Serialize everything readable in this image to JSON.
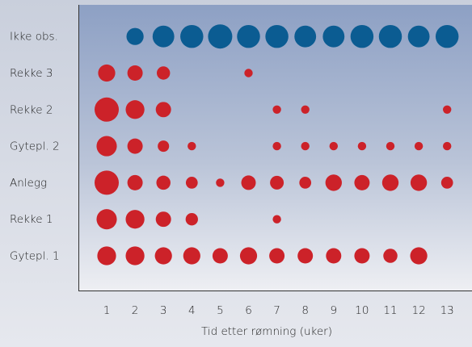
{
  "chart_data": {
    "type": "scatter",
    "title": "",
    "xlabel": "Tid etter rømning (uker)",
    "ylabel": "",
    "x": [
      1,
      2,
      3,
      4,
      5,
      6,
      7,
      8,
      9,
      10,
      11,
      12,
      13
    ],
    "x_tick_labels": [
      "1",
      "2",
      "3",
      "4",
      "5",
      "6",
      "7",
      "8",
      "9",
      "10",
      "11",
      "12",
      "13"
    ],
    "categories": [
      "Gytepl. 1",
      "Rekke 1",
      "Anlegg",
      "Gytepl. 2",
      "Rekke 2",
      "Rekke 3",
      "Ikke obs."
    ],
    "size_scale_max": 5,
    "colors": {
      "observed": "#cc2229",
      "not_observed": "#0b5c92"
    },
    "series": [
      {
        "category": "Gytepl. 1",
        "color": "#cc2229",
        "values": [
          3,
          3,
          2.5,
          2.5,
          2,
          2.5,
          2,
          2,
          2,
          2,
          1.7,
          2.5,
          null
        ]
      },
      {
        "category": "Rekke 1",
        "color": "#cc2229",
        "values": [
          3.5,
          3,
          2,
          1.3,
          null,
          null,
          0.6,
          null,
          null,
          null,
          null,
          null,
          null
        ]
      },
      {
        "category": "Anlegg",
        "color": "#cc2229",
        "values": [
          5,
          2,
          1.7,
          1.2,
          0.6,
          1.8,
          1.6,
          1.2,
          2.3,
          2,
          2.3,
          2.3,
          1.2
        ]
      },
      {
        "category": "Gytepl. 2",
        "color": "#cc2229",
        "values": [
          3.5,
          2,
          1.1,
          0.6,
          null,
          null,
          0.6,
          0.6,
          0.6,
          0.6,
          0.6,
          0.6,
          0.6
        ]
      },
      {
        "category": "Rekke 2",
        "color": "#cc2229",
        "values": [
          5,
          3,
          2,
          null,
          null,
          null,
          0.6,
          0.6,
          null,
          null,
          null,
          null,
          0.6
        ]
      },
      {
        "category": "Rekke 3",
        "color": "#cc2229",
        "values": [
          2.5,
          2,
          1.5,
          null,
          null,
          0.6,
          null,
          null,
          null,
          null,
          null,
          null,
          null
        ]
      },
      {
        "category": "Ikke obs.",
        "color": "#0b5c92",
        "values": [
          null,
          2.5,
          4,
          4.5,
          5,
          4.5,
          4.5,
          4,
          4,
          4.5,
          4.5,
          4,
          4.5
        ]
      }
    ]
  }
}
